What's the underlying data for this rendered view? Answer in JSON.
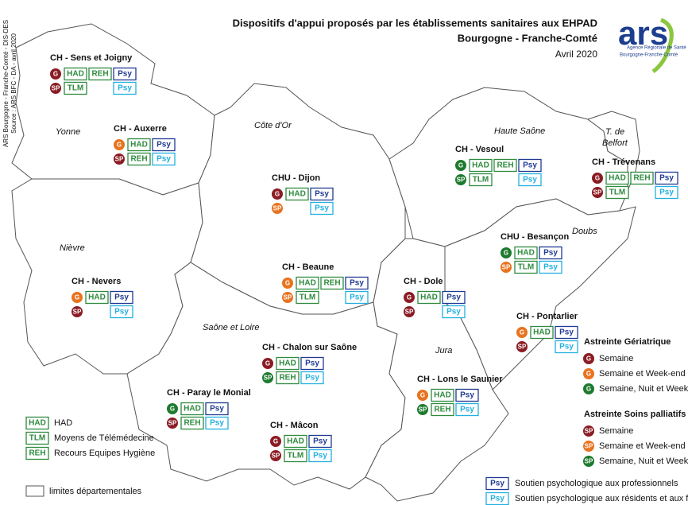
{
  "header": {
    "title": "Dispositifs d'appui proposés par les établissements sanitaires aux EHPAD",
    "subtitle": "Bourgogne - Franche-Comté",
    "date": "Avril 2020"
  },
  "logo": {
    "name": "ars",
    "agency": "Agence Régionale de Santé",
    "region": "Bourgogne-Franche-Comté"
  },
  "side_note": [
    "ARS Bourgogne - Franche-Comté  -  DIS-DES",
    "Source : ARS BFC - DA - avril 2020"
  ],
  "departments": [
    "Yonne",
    "Côte d'Or",
    "Haute Saône",
    "T. de",
    "Belfort",
    "Doubs",
    "Nièvre",
    "Saône et Loire",
    "Jura"
  ],
  "establishments": [
    {
      "name": "CH - Sens et Joigny",
      "rows": [
        {
          "icon": "G",
          "color": "#8b1c24",
          "badges": [
            "HAD",
            "REH",
            "Psy"
          ]
        },
        {
          "icon": "SP",
          "color": "#8b1c24",
          "badges": [
            "TLM",
            "Psy"
          ]
        }
      ]
    },
    {
      "name": "CH - Auxerre",
      "rows": [
        {
          "icon": "G",
          "color": "#e8731f",
          "badges": [
            "HAD",
            "Psy"
          ]
        },
        {
          "icon": "SP",
          "color": "#8b1c24",
          "badges": [
            "REH",
            "Psy"
          ]
        }
      ]
    },
    {
      "name": "CHU - Dijon",
      "rows": [
        {
          "icon": "G",
          "color": "#8b1c24",
          "badges": [
            "HAD",
            "Psy"
          ]
        },
        {
          "icon": "SP",
          "color": "#e8731f",
          "badges": [
            "Psy"
          ]
        }
      ]
    },
    {
      "name": "CH - Nevers",
      "rows": [
        {
          "icon": "G",
          "color": "#e8731f",
          "badges": [
            "HAD",
            "Psy"
          ]
        },
        {
          "icon": "SP",
          "color": "#8b1c24",
          "badges": [
            "Psy"
          ]
        }
      ]
    },
    {
      "name": "CH - Beaune",
      "rows": [
        {
          "icon": "G",
          "color": "#e8731f",
          "badges": [
            "HAD",
            "REH",
            "Psy"
          ]
        },
        {
          "icon": "SP",
          "color": "#e8731f",
          "badges": [
            "TLM",
            "Psy"
          ]
        }
      ]
    },
    {
      "name": "CH - Dole",
      "rows": [
        {
          "icon": "G",
          "color": "#8b1c24",
          "badges": [
            "HAD",
            "Psy"
          ]
        },
        {
          "icon": "SP",
          "color": "#8b1c24",
          "badges": [
            "Psy"
          ]
        }
      ]
    },
    {
      "name": "CH - Vesoul",
      "rows": [
        {
          "icon": "G",
          "color": "#1e7a2e",
          "badges": [
            "HAD",
            "REH",
            "Psy"
          ]
        },
        {
          "icon": "SP",
          "color": "#1e7a2e",
          "badges": [
            "TLM",
            "Psy"
          ]
        }
      ]
    },
    {
      "name": "CH - Trévenans",
      "rows": [
        {
          "icon": "G",
          "color": "#8b1c24",
          "badges": [
            "HAD",
            "REH",
            "Psy"
          ]
        },
        {
          "icon": "SP",
          "color": "#8b1c24",
          "badges": [
            "TLM",
            "Psy"
          ]
        }
      ]
    },
    {
      "name": "CHU - Besançon",
      "rows": [
        {
          "icon": "G",
          "color": "#1e7a2e",
          "badges": [
            "HAD",
            "Psy"
          ]
        },
        {
          "icon": "SP",
          "color": "#e8731f",
          "badges": [
            "TLM",
            "Psy"
          ]
        }
      ]
    },
    {
      "name": "CH - Pontarlier",
      "rows": [
        {
          "icon": "G",
          "color": "#e8731f",
          "badges": [
            "HAD",
            "Psy"
          ]
        },
        {
          "icon": "SP",
          "color": "#8b1c24",
          "badges": [
            "Psy"
          ]
        }
      ]
    },
    {
      "name": "CH - Chalon sur Saône",
      "rows": [
        {
          "icon": "G",
          "color": "#8b1c24",
          "badges": [
            "HAD",
            "Psy"
          ]
        },
        {
          "icon": "SP",
          "color": "#1e7a2e",
          "badges": [
            "REH",
            "Psy"
          ]
        }
      ]
    },
    {
      "name": "CH - Paray le Monial",
      "rows": [
        {
          "icon": "G",
          "color": "#1e7a2e",
          "badges": [
            "HAD",
            "Psy"
          ]
        },
        {
          "icon": "SP",
          "color": "#8b1c24",
          "badges": [
            "REH",
            "Psy"
          ]
        }
      ]
    },
    {
      "name": "CH - Mâcon",
      "rows": [
        {
          "icon": "G",
          "color": "#8b1c24",
          "badges": [
            "HAD",
            "Psy"
          ]
        },
        {
          "icon": "SP",
          "color": "#8b1c24",
          "badges": [
            "TLM",
            "Psy"
          ]
        }
      ]
    },
    {
      "name": "CH - Lons le Saunier",
      "rows": [
        {
          "icon": "G",
          "color": "#e8731f",
          "badges": [
            "HAD",
            "Psy"
          ]
        },
        {
          "icon": "SP",
          "color": "#1e7a2e",
          "badges": [
            "REH",
            "Psy"
          ]
        }
      ]
    }
  ],
  "legend": {
    "services": [
      {
        "code": "HAD",
        "label": "HAD",
        "color": "#2e8b3e"
      },
      {
        "code": "TLM",
        "label": "Moyens de Télémédecine",
        "color": "#2e8b3e"
      },
      {
        "code": "REH",
        "label": "Recours Equipes Hygiène",
        "color": "#2e8b3e"
      }
    ],
    "boundary_label": "limites départementales",
    "geriatric": {
      "title": "Astreinte Gériatrique",
      "icon": "G",
      "items": [
        {
          "color": "#8b1c24",
          "label": "Semaine"
        },
        {
          "color": "#e8731f",
          "label": "Semaine et Week-end"
        },
        {
          "color": "#1e7a2e",
          "label": "Semaine, Nuit et Week-end"
        }
      ]
    },
    "palliative": {
      "title": "Astreinte Soins palliatifs",
      "icon": "SP",
      "items": [
        {
          "color": "#8b1c24",
          "label": "Semaine"
        },
        {
          "color": "#e8731f",
          "label": "Semaine et Week-end"
        },
        {
          "color": "#1e7a2e",
          "label": "Semaine, Nuit et Week-end"
        }
      ]
    },
    "psy": [
      {
        "code": "Psy",
        "color": "#1f3a93",
        "label": "Soutien psychologique aux professionnels"
      },
      {
        "code": "Psy",
        "color": "#22b0e0",
        "label": "Soutien psychologique aux résidents et aux familles"
      }
    ]
  }
}
